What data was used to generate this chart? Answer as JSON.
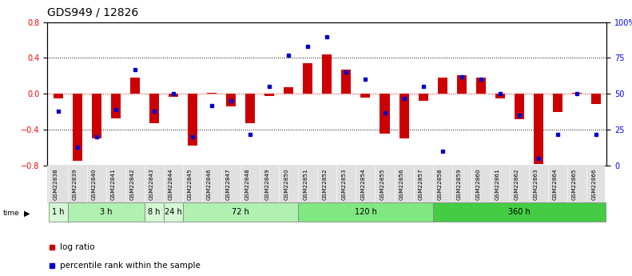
{
  "title": "GDS949 / 12826",
  "samples": [
    "GSM22838",
    "GSM22839",
    "GSM22840",
    "GSM22841",
    "GSM22842",
    "GSM22843",
    "GSM22844",
    "GSM22845",
    "GSM22846",
    "GSM22847",
    "GSM22848",
    "GSM22849",
    "GSM22850",
    "GSM22851",
    "GSM22852",
    "GSM22853",
    "GSM22854",
    "GSM22855",
    "GSM22856",
    "GSM22857",
    "GSM22858",
    "GSM22859",
    "GSM22860",
    "GSM22861",
    "GSM22862",
    "GSM22863",
    "GSM22864",
    "GSM22865",
    "GSM22866"
  ],
  "log_ratio": [
    -0.05,
    -0.75,
    -0.5,
    -0.27,
    0.18,
    -0.33,
    -0.03,
    -0.58,
    0.01,
    -0.14,
    -0.33,
    -0.02,
    0.07,
    0.34,
    0.44,
    0.27,
    -0.04,
    -0.44,
    -0.5,
    -0.08,
    0.18,
    0.21,
    0.18,
    -0.05,
    -0.28,
    -0.78,
    -0.2,
    0.01,
    -0.11
  ],
  "percentile": [
    38,
    13,
    20,
    39,
    67,
    38,
    50,
    20,
    42,
    45,
    22,
    55,
    77,
    83,
    90,
    65,
    60,
    37,
    47,
    55,
    10,
    62,
    60,
    50,
    35,
    5,
    22,
    50,
    22
  ],
  "time_groups": [
    {
      "label": "1 h",
      "start": 0,
      "end": 1,
      "color": "#d4f7d4"
    },
    {
      "label": "3 h",
      "start": 1,
      "end": 5,
      "color": "#b0f0b0"
    },
    {
      "label": "8 h",
      "start": 5,
      "end": 6,
      "color": "#d4f7d4"
    },
    {
      "label": "24 h",
      "start": 6,
      "end": 7,
      "color": "#d4f7d4"
    },
    {
      "label": "72 h",
      "start": 7,
      "end": 13,
      "color": "#b0f0b0"
    },
    {
      "label": "120 h",
      "start": 13,
      "end": 20,
      "color": "#80e880"
    },
    {
      "label": "360 h",
      "start": 20,
      "end": 29,
      "color": "#44cc44"
    }
  ],
  "bar_color": "#cc0000",
  "dot_color": "#0000cc",
  "ylim_left": [
    -0.8,
    0.8
  ],
  "ylim_right": [
    0,
    100
  ],
  "yticks_left": [
    -0.8,
    -0.4,
    0.0,
    0.4,
    0.8
  ],
  "yticks_right": [
    0,
    25,
    50,
    75,
    100
  ],
  "ytick_labels_right": [
    "0",
    "25",
    "50",
    "75",
    "100%"
  ],
  "hlines_dotted": [
    -0.4,
    0.4
  ],
  "hline_red": 0.0,
  "title_fontsize": 10,
  "tick_fontsize": 7,
  "bar_width": 0.5
}
